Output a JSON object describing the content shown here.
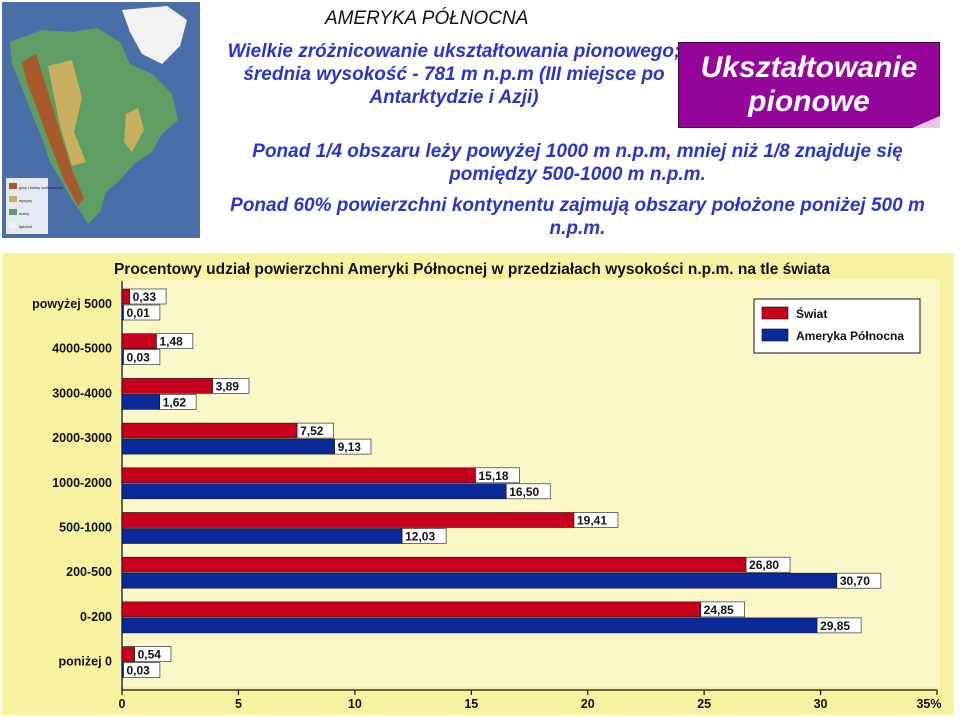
{
  "region_title": "AMERYKA PÓŁNOCNA",
  "intro_text": "Wielkie zróżnicowanie ukształtowania pionowego; średnia wysokość - 781 m n.p.m (III miejsce po Antarktydzie i Azji)",
  "box_label": "Ukształtowanie pionowe",
  "desc_1": "Ponad 1/4 obszaru leży powyżej 1000 m n.p.m, mniej niż 1/8 znajduje się pomiędzy 500-1000 m n.p.m.",
  "desc_2": "Ponad 60% powierzchni kontynentu zajmują obszary położone poniżej 500 m n.p.m.",
  "map": {
    "colors": {
      "sea": "#4a6fa8",
      "lowland": "#5f9e62",
      "upland": "#c9b060",
      "mountain": "#a85a2c",
      "ice": "#f2f2f2"
    },
    "legend": [
      "góry i koliny wulkaniczne",
      "wyżyny",
      "niziny",
      "lądolód"
    ]
  },
  "chart_data": {
    "type": "bar",
    "title": "Procentowy udział powierzchni Ameryki Północnej w przedziałach wysokości n.p.m. na tle świata",
    "categories": [
      "powyżej 5000",
      "4000-5000",
      "3000-4000",
      "2000-3000",
      "1000-2000",
      "500-1000",
      "200-500",
      "0-200",
      "poniżej 0"
    ],
    "series": [
      {
        "name": "Świat",
        "color": "#c8001e",
        "values": [
          0.33,
          1.48,
          3.89,
          7.52,
          15.18,
          19.41,
          26.8,
          24.85,
          0.54
        ],
        "labels": [
          "0,33",
          "1,48",
          "3,89",
          "7,52",
          "15,18",
          "19,41",
          "26,80",
          "24,85",
          "0,54"
        ]
      },
      {
        "name": "Ameryka Północna",
        "color": "#0a2a9a",
        "values": [
          0.01,
          0.03,
          1.62,
          9.13,
          16.5,
          12.03,
          30.7,
          29.85,
          0.03
        ],
        "labels": [
          "0,01",
          "0,03",
          "1,62",
          "9,13",
          "16,50",
          "12,03",
          "30,70",
          "29,85",
          "0,03"
        ]
      }
    ],
    "x_ticks": [
      "0",
      "5",
      "10",
      "15",
      "20",
      "25",
      "30",
      "35%"
    ],
    "xlim": [
      0,
      35
    ],
    "legend_position": "top-right",
    "background": "#f7f3a0"
  }
}
